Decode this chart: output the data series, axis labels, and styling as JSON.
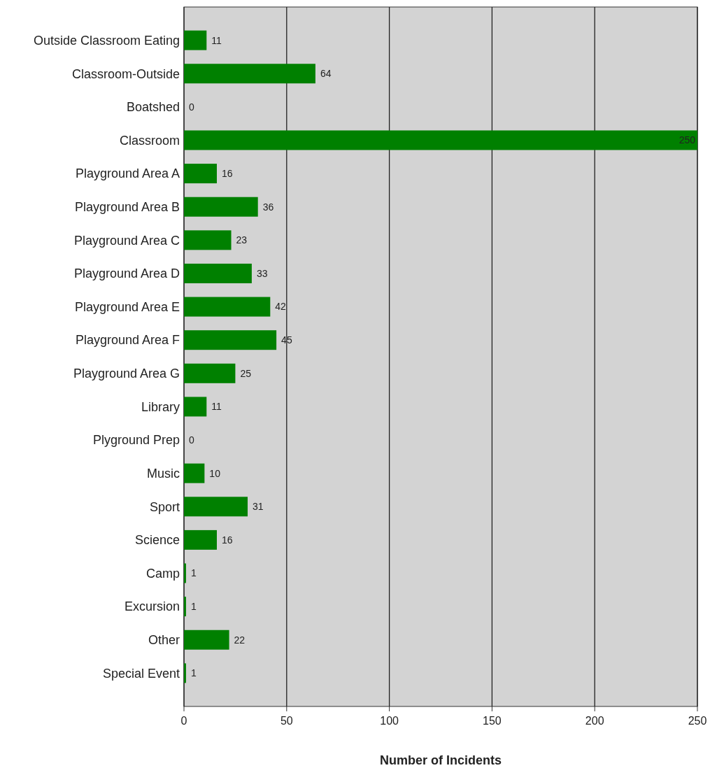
{
  "chart_data": {
    "type": "bar",
    "orientation": "horizontal",
    "xlabel": "Number of Incidents",
    "categories": [
      "Outside Classroom Eating",
      "Classroom-Outside",
      "Boatshed",
      "Classroom",
      "Playground Area A",
      "Playground Area B",
      "Playground Area C",
      "Playground Area D",
      "Playground Area E",
      "Playground Area F",
      "Playground Area G",
      "Library",
      "Plyground Prep",
      "Music",
      "Sport",
      "Science",
      "Camp",
      "Excursion",
      "Other",
      "Special Event"
    ],
    "values": [
      11,
      64,
      0,
      250,
      16,
      36,
      23,
      33,
      42,
      45,
      25,
      11,
      0,
      10,
      31,
      16,
      1,
      1,
      22,
      1
    ],
    "color": "#008000",
    "xlim": [
      0,
      250
    ],
    "xticks": [
      0,
      50,
      100,
      150,
      200,
      250
    ],
    "grid": "x",
    "data_labels": true
  }
}
